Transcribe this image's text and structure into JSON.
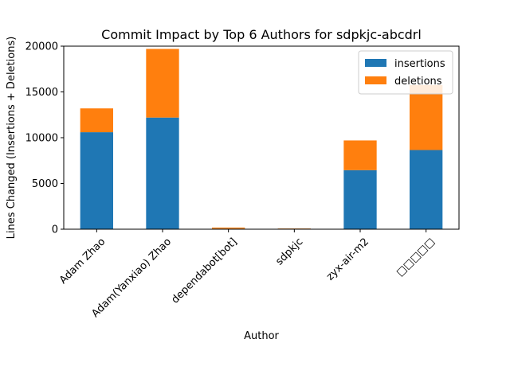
{
  "chart_data": {
    "type": "bar",
    "stacked": true,
    "title": "Commit Impact by Top 6 Authors for sdpkjc-abcdrl",
    "xlabel": "Author",
    "ylabel": "Lines Changed (Insertions + Deletions)",
    "categories": [
      "Adam Zhao",
      "Adam(Yanxiao) Zhao",
      "dependabot[bot]",
      "sdpkjc",
      "zyx-air-m2",
      "□□□□□"
    ],
    "series": [
      {
        "name": "insertions",
        "color": "#1f77b4",
        "values": [
          10600,
          12200,
          60,
          60,
          6450,
          8650
        ]
      },
      {
        "name": "deletions",
        "color": "#ff7f0e",
        "values": [
          2600,
          7500,
          120,
          30,
          3250,
          7100
        ]
      }
    ],
    "ylim": [
      0,
      20000
    ],
    "yticks": [
      0,
      5000,
      10000,
      15000,
      20000
    ],
    "legend_position": "top-right",
    "grid": false
  }
}
